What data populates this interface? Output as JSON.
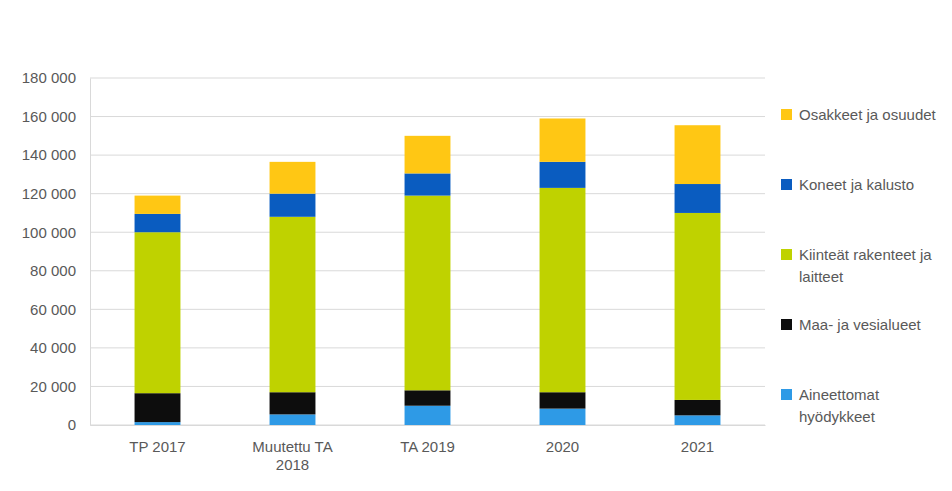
{
  "chart_data": {
    "type": "bar",
    "stacked": true,
    "grid": true,
    "legend": "right",
    "categories": [
      "TP 2017",
      "Muutettu TA 2018",
      "TA 2019",
      "2020",
      "2021"
    ],
    "ylim": [
      0,
      180000
    ],
    "yticks": [
      0,
      {
        "value": 20000,
        "label": "20 000"
      },
      {
        "value": 40000,
        "label": "40 000"
      },
      {
        "value": 60000,
        "label": "60 000"
      },
      {
        "value": 80000,
        "label": "80 000"
      },
      {
        "value": 100000,
        "label": "100 000"
      },
      {
        "value": 120000,
        "label": "120 000"
      },
      {
        "value": 140000,
        "label": "140 000"
      },
      {
        "value": 160000,
        "label": "160 000"
      },
      {
        "value": 180000,
        "label": "180 000"
      }
    ],
    "series": [
      {
        "name": "Aineettomat hyödykkeet",
        "color": "#2e9ae6",
        "values": [
          1500,
          5500,
          10000,
          8500,
          5000
        ]
      },
      {
        "name": "Maa- ja vesialueet",
        "color": "#0d0d0d",
        "values": [
          15000,
          11500,
          8000,
          8500,
          8000
        ]
      },
      {
        "name": "Kiinteät rakenteet ja laitteet",
        "color": "#bfd200",
        "values": [
          83500,
          91000,
          101000,
          106000,
          97000
        ]
      },
      {
        "name": "Koneet ja kalusto",
        "color": "#0a5cc0",
        "values": [
          9500,
          12000,
          11500,
          13500,
          15000
        ]
      },
      {
        "name": "Osakkeet ja osuudet",
        "color": "#ffc714",
        "values": [
          9500,
          16500,
          19500,
          22500,
          30500
        ]
      }
    ]
  }
}
